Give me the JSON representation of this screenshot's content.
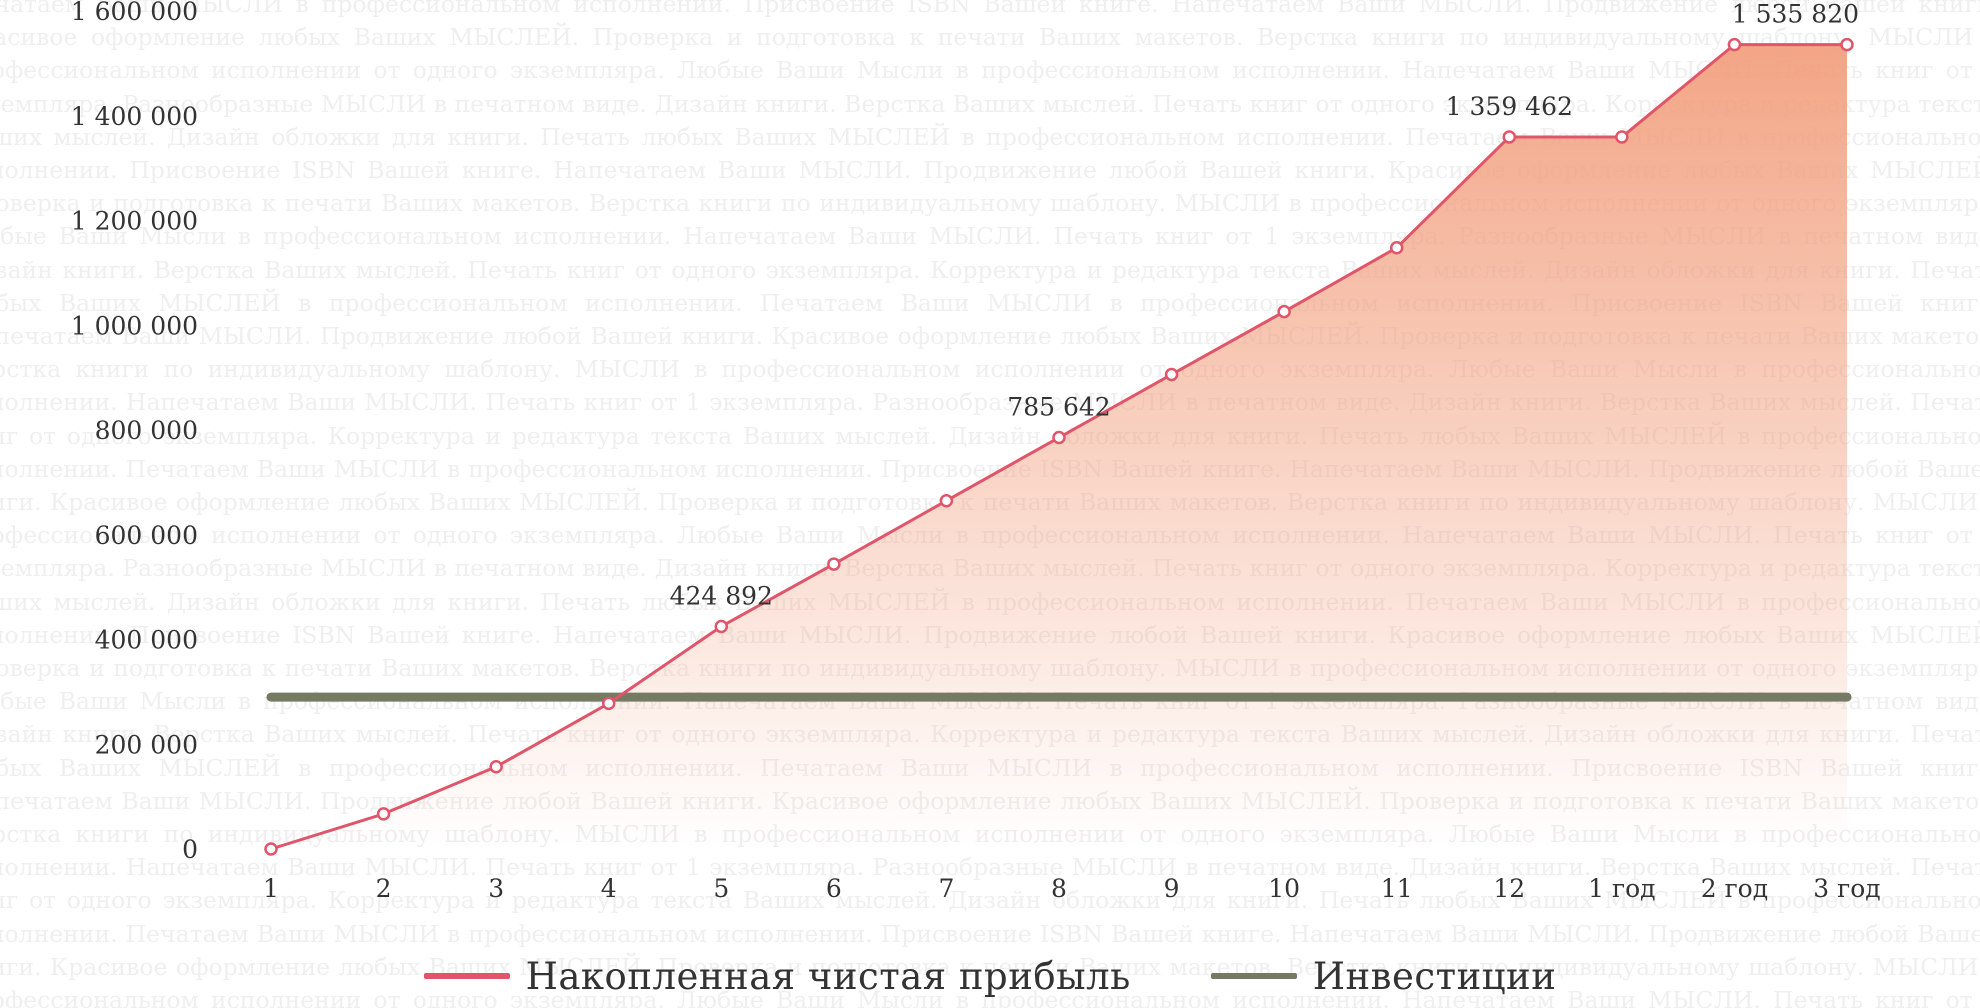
{
  "background_text": "Печатаем Ваши МЫСЛИ в профессиональном исполнении. Присвоение ISBN Вашей книге. Напечатаем Ваши МЫСЛИ. Продвижение любой Вашей книги. Красивое оформление любых Ваших МЫСЛЕЙ. Проверка и подготовка к печати Ваших макетов. Верстка книги по индивидуальному шаблону. МЫСЛИ в профессиональном исполнении от одного экземпляра. Любые Ваши Мысли в профессиональном исполнении. Напечатаем Ваши МЫСЛИ. Печать книг от 1 экземпляра. Разнообразные МЫСЛИ в печатном виде. Дизайн книги. Верстка Ваших мыслей. Печать книг от одного экземпляра. Корректура и редактура текста Ваших мыслей. Дизайн обложки для книги. Печать любых Ваших МЫСЛЕЙ в профессиональном исполнении.",
  "colors": {
    "profit_line": "#e0556a",
    "profit_fill": "#f2a07f",
    "investment_line": "#757a62",
    "axis_text": "#333333"
  },
  "chart_data": {
    "type": "line",
    "x": [
      "1",
      "2",
      "3",
      "4",
      "5",
      "6",
      "7",
      "8",
      "9",
      "10",
      "11",
      "12",
      "1 год",
      "2 год",
      "3 год"
    ],
    "ylim": [
      0,
      1600000
    ],
    "yticks": [
      0,
      200000,
      400000,
      600000,
      800000,
      1000000,
      1200000,
      1400000,
      1600000
    ],
    "ytick_labels": [
      "0",
      "200 000",
      "400 000",
      "600 000",
      "800 000",
      "1 000 000",
      "1 200 000",
      "1 400 000",
      "1 600 000"
    ],
    "grid": false,
    "legend_position": "bottom",
    "series": [
      {
        "name": "Накопленная чистая прибыль",
        "style": "line-area-markers",
        "values": [
          0,
          67000,
          157000,
          278000,
          424892,
          544000,
          665000,
          785642,
          906000,
          1026000,
          1148000,
          1359462,
          1359462,
          1535820,
          1535820
        ],
        "labels": [
          "",
          "",
          "",
          "",
          "424 892",
          "",
          "",
          "785 642",
          "",
          "",
          "",
          "1 359 462",
          "",
          "",
          "1 535 820"
        ]
      },
      {
        "name": "Инвестиции",
        "style": "line",
        "values": [
          290000,
          290000,
          290000,
          290000,
          290000,
          290000,
          290000,
          290000,
          290000,
          290000,
          290000,
          290000,
          290000,
          290000,
          290000
        ],
        "labels": []
      }
    ]
  }
}
